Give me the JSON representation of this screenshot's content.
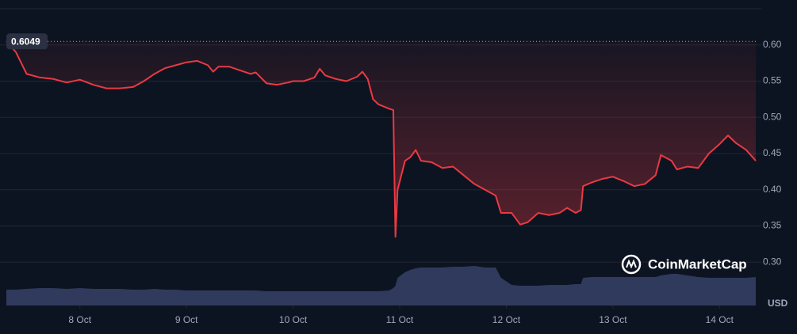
{
  "chart_data": {
    "type": "line",
    "x": [
      7.31,
      7.4,
      7.5,
      7.625,
      7.75,
      7.875,
      8.0,
      8.125,
      8.25,
      8.375,
      8.5,
      8.6,
      8.7,
      8.8,
      8.9,
      9.0,
      9.1,
      9.2,
      9.25,
      9.3,
      9.4,
      9.5,
      9.6,
      9.65,
      9.75,
      9.85,
      9.95,
      10.0,
      10.1,
      10.2,
      10.25,
      10.3,
      10.4,
      10.5,
      10.6,
      10.65,
      10.7,
      10.75,
      10.8,
      10.9,
      10.94,
      10.96,
      10.98,
      11.05,
      11.1,
      11.15,
      11.2,
      11.3,
      11.4,
      11.5,
      11.6,
      11.7,
      11.8,
      11.9,
      11.95,
      12.05,
      12.13,
      12.2,
      12.3,
      12.4,
      12.5,
      12.57,
      12.65,
      12.7,
      12.72,
      12.8,
      12.9,
      13.0,
      13.1,
      13.2,
      13.3,
      13.4,
      13.45,
      13.55,
      13.6,
      13.7,
      13.8,
      13.9,
      14.0,
      14.08,
      14.15,
      14.25,
      14.34
    ],
    "series": [
      {
        "color": "#ea3943",
        "values": [
          0.605,
          0.59,
          0.56,
          0.555,
          0.553,
          0.548,
          0.552,
          0.545,
          0.54,
          0.54,
          0.542,
          0.55,
          0.56,
          0.568,
          0.572,
          0.576,
          0.578,
          0.572,
          0.563,
          0.57,
          0.57,
          0.565,
          0.56,
          0.562,
          0.547,
          0.545,
          0.548,
          0.55,
          0.55,
          0.555,
          0.567,
          0.558,
          0.553,
          0.55,
          0.556,
          0.563,
          0.553,
          0.525,
          0.518,
          0.512,
          0.51,
          0.335,
          0.4,
          0.44,
          0.445,
          0.455,
          0.44,
          0.438,
          0.43,
          0.432,
          0.42,
          0.408,
          0.4,
          0.392,
          0.368,
          0.368,
          0.352,
          0.355,
          0.368,
          0.365,
          0.368,
          0.375,
          0.368,
          0.372,
          0.405,
          0.41,
          0.415,
          0.418,
          0.412,
          0.405,
          0.408,
          0.42,
          0.448,
          0.44,
          0.428,
          0.432,
          0.43,
          0.45,
          0.463,
          0.475,
          0.465,
          0.455,
          0.44
        ]
      }
    ],
    "volume": {
      "color": "#2f3a5c",
      "values": [
        20,
        20,
        21,
        22,
        22,
        21,
        22,
        21,
        21,
        21,
        20,
        20,
        21,
        20,
        20,
        19,
        19,
        19,
        19,
        19,
        19,
        19,
        19,
        19,
        18,
        18,
        18,
        18,
        18,
        18,
        18,
        18,
        18,
        18,
        18,
        18,
        18,
        18,
        18,
        19,
        22,
        25,
        35,
        42,
        45,
        47,
        48,
        48,
        48,
        49,
        49,
        50,
        48,
        48,
        35,
        26,
        25,
        25,
        25,
        26,
        26,
        26,
        27,
        27,
        35,
        36,
        36,
        36,
        36,
        36,
        36,
        36,
        38,
        40,
        40,
        38,
        36,
        35,
        35,
        35,
        35,
        35,
        36
      ]
    },
    "reference_price": 0.6049,
    "xlim": [
      7.31,
      14.34
    ],
    "xticks": [
      {
        "value": 8,
        "label": "8 Oct"
      },
      {
        "value": 9,
        "label": "9 Oct"
      },
      {
        "value": 10,
        "label": "10 Oct"
      },
      {
        "value": 11,
        "label": "11 Oct"
      },
      {
        "value": 12,
        "label": "12 Oct"
      },
      {
        "value": 13,
        "label": "13 Oct"
      },
      {
        "value": 14,
        "label": "14 Oct"
      }
    ],
    "ylim": [
      0.25,
      0.65
    ],
    "yticks": [
      {
        "value": 0.3,
        "label": "0.30"
      },
      {
        "value": 0.35,
        "label": "0.35"
      },
      {
        "value": 0.4,
        "label": "0.40"
      },
      {
        "value": 0.45,
        "label": "0.45"
      },
      {
        "value": 0.5,
        "label": "0.50"
      },
      {
        "value": 0.55,
        "label": "0.55"
      },
      {
        "value": 0.6,
        "label": "0.60"
      }
    ],
    "y_unit": "USD",
    "watermark": "CoinMarketCap",
    "grid": true
  }
}
